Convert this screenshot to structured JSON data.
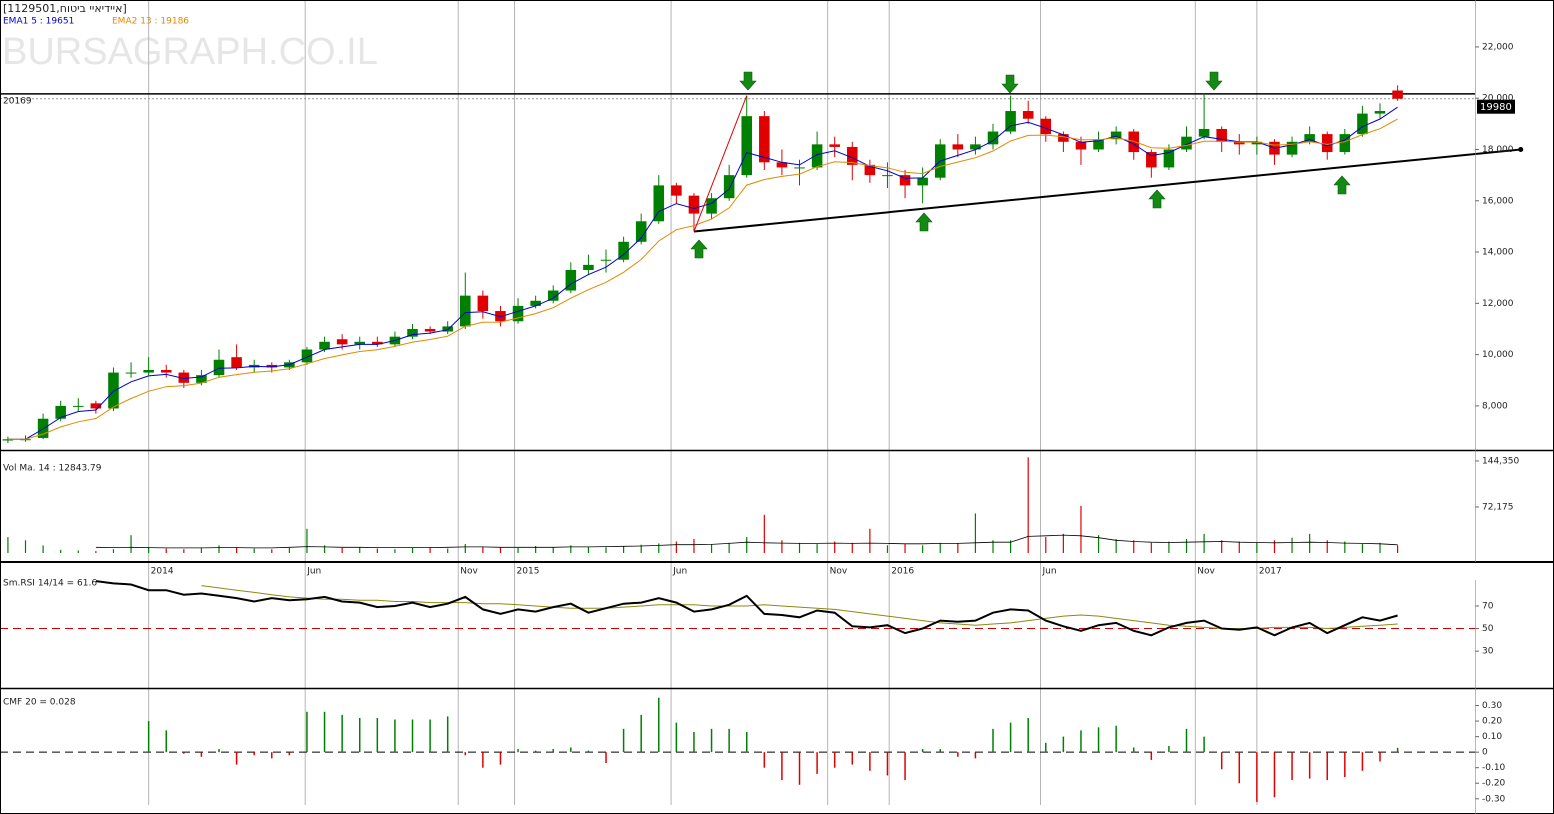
{
  "chart_data": [
    {
      "type": "candlestick",
      "title": "[1129501,איידיאיי ביטוח]",
      "watermark": "BURSAGRAPH.CO.IL",
      "up_color": "#008000",
      "down_color": "#e00000",
      "xlim": [
        -0.45,
        83.4
      ],
      "ylim": [
        6280,
        23830
      ],
      "yticks": [
        {
          "value": 8000,
          "label": "8,000"
        },
        {
          "value": 10000,
          "label": "10,000"
        },
        {
          "value": 12000,
          "label": "12,000"
        },
        {
          "value": 14000,
          "label": "14,000"
        },
        {
          "value": 16000,
          "label": "16,000"
        },
        {
          "value": 18000,
          "label": "18,000"
        },
        {
          "value": 20000,
          "label": "20,000"
        },
        {
          "value": 22000,
          "label": "22,000"
        }
      ],
      "hline": 20169,
      "trendlines": [
        {
          "x": [
            39,
            86
          ],
          "y": [
            14800,
            18000
          ],
          "color": "#000000"
        },
        {
          "x": [
            39,
            42
          ],
          "y": [
            14800,
            20100
          ],
          "color": "#e00000"
        }
      ],
      "candles": [
        [
          6650,
          6800,
          6550,
          6700
        ],
        [
          6700,
          6850,
          6600,
          6700
        ],
        [
          6750,
          7700,
          6700,
          7500
        ],
        [
          7500,
          8200,
          7400,
          8000
        ],
        [
          8000,
          8300,
          7800,
          8000
        ],
        [
          8100,
          8200,
          7700,
          7900
        ],
        [
          7900,
          9500,
          7800,
          9300
        ],
        [
          9300,
          9700,
          9100,
          9300
        ],
        [
          9300,
          9900,
          9200,
          9400
        ],
        [
          9400,
          9600,
          9100,
          9300
        ],
        [
          9300,
          9400,
          8700,
          8900
        ],
        [
          8900,
          9400,
          8800,
          9200
        ],
        [
          9200,
          10200,
          9100,
          9800
        ],
        [
          9900,
          10400,
          9400,
          9500
        ],
        [
          9500,
          9800,
          9300,
          9600
        ],
        [
          9600,
          9700,
          9300,
          9500
        ],
        [
          9500,
          9800,
          9400,
          9700
        ],
        [
          9700,
          10300,
          9600,
          10200
        ],
        [
          10200,
          10700,
          10100,
          10500
        ],
        [
          10600,
          10800,
          10200,
          10400
        ],
        [
          10400,
          10700,
          10200,
          10500
        ],
        [
          10500,
          10700,
          10300,
          10400
        ],
        [
          10400,
          10900,
          10300,
          10700
        ],
        [
          10700,
          11200,
          10600,
          11000
        ],
        [
          11000,
          11100,
          10800,
          10900
        ],
        [
          10900,
          11300,
          10800,
          11100
        ],
        [
          11100,
          13200,
          11000,
          12300
        ],
        [
          12300,
          12500,
          11400,
          11700
        ],
        [
          11700,
          11900,
          11100,
          11300
        ],
        [
          11300,
          12200,
          11200,
          11900
        ],
        [
          11900,
          12300,
          11800,
          12100
        ],
        [
          12100,
          12700,
          12000,
          12500
        ],
        [
          12500,
          13600,
          12400,
          13300
        ],
        [
          13300,
          13900,
          13100,
          13500
        ],
        [
          13700,
          14100,
          13200,
          13700
        ],
        [
          13700,
          14600,
          13600,
          14400
        ],
        [
          14400,
          15500,
          14300,
          15200
        ],
        [
          15200,
          17000,
          15100,
          16600
        ],
        [
          16600,
          16700,
          15900,
          16200
        ],
        [
          16200,
          16300,
          14800,
          15500
        ],
        [
          15500,
          16300,
          15300,
          16100
        ],
        [
          16100,
          17400,
          16000,
          17000
        ],
        [
          17000,
          20100,
          16900,
          19300
        ],
        [
          19300,
          19500,
          17200,
          17500
        ],
        [
          17500,
          18000,
          17000,
          17300
        ],
        [
          17300,
          17600,
          16600,
          17300
        ],
        [
          17300,
          18700,
          17200,
          18200
        ],
        [
          18200,
          18500,
          17700,
          18100
        ],
        [
          18100,
          18300,
          16800,
          17400
        ],
        [
          17400,
          17600,
          16700,
          17000
        ],
        [
          17000,
          17500,
          16500,
          17000
        ],
        [
          17000,
          17200,
          16100,
          16600
        ],
        [
          16600,
          17300,
          15900,
          16900
        ],
        [
          16900,
          18400,
          16800,
          18200
        ],
        [
          18200,
          18600,
          17700,
          18000
        ],
        [
          18000,
          18500,
          17800,
          18200
        ],
        [
          18200,
          19000,
          18000,
          18700
        ],
        [
          18700,
          20100,
          18600,
          19500
        ],
        [
          19500,
          19900,
          19000,
          19200
        ],
        [
          19200,
          19300,
          18300,
          18600
        ],
        [
          18600,
          18700,
          17900,
          18300
        ],
        [
          18300,
          18500,
          17400,
          18000
        ],
        [
          18000,
          18700,
          17900,
          18400
        ],
        [
          18400,
          18900,
          18200,
          18700
        ],
        [
          18700,
          18800,
          17600,
          17900
        ],
        [
          17900,
          18000,
          16900,
          17300
        ],
        [
          17300,
          18200,
          17200,
          18000
        ],
        [
          18000,
          18900,
          17900,
          18500
        ],
        [
          18500,
          20200,
          18400,
          18800
        ],
        [
          18800,
          18900,
          17900,
          18300
        ],
        [
          18300,
          18600,
          17800,
          18200
        ],
        [
          18200,
          18500,
          17800,
          18300
        ],
        [
          18300,
          18400,
          17400,
          17800
        ],
        [
          17800,
          18500,
          17700,
          18300
        ],
        [
          18300,
          18900,
          18200,
          18600
        ],
        [
          18600,
          18700,
          17600,
          17900
        ],
        [
          17900,
          18800,
          17800,
          18600
        ],
        [
          18600,
          19700,
          18500,
          19400
        ],
        [
          19400,
          19800,
          19200,
          19500
        ],
        [
          20300,
          20500,
          19900,
          19980
        ]
      ],
      "series": [
        {
          "name": "EMA1 5 : 19651",
          "color": "#0000cc",
          "values": [
            6700,
            6700,
            7100,
            7550,
            7780,
            7840,
            8570,
            8940,
            9170,
            9230,
            9070,
            9130,
            9470,
            9480,
            9540,
            9520,
            9610,
            9900,
            10200,
            10300,
            10400,
            10400,
            10550,
            10780,
            10840,
            10970,
            11640,
            11670,
            11480,
            11690,
            11900,
            12200,
            12750,
            13120,
            13410,
            13900,
            14550,
            15580,
            15890,
            15700,
            15900,
            16450,
            17880,
            17690,
            17500,
            17400,
            17800,
            17950,
            17680,
            17340,
            17170,
            16880,
            16890,
            17550,
            17770,
            17990,
            18340,
            18920,
            19060,
            18830,
            18570,
            18280,
            18340,
            18520,
            18210,
            17760,
            17880,
            18190,
            18500,
            18400,
            18300,
            18300,
            18050,
            18180,
            18390,
            18140,
            18370,
            18890,
            19190,
            19651
          ]
        },
        {
          "name": "EMA2 13 : 19186",
          "color": "#e08a00",
          "values": [
            6700,
            6700,
            6900,
            7180,
            7380,
            7510,
            7960,
            8290,
            8570,
            8750,
            8790,
            8890,
            9120,
            9220,
            9310,
            9360,
            9450,
            9640,
            9850,
            9990,
            10120,
            10190,
            10320,
            10490,
            10590,
            10720,
            11110,
            11260,
            11270,
            11430,
            11600,
            11830,
            12200,
            12530,
            12820,
            13210,
            13710,
            14430,
            14870,
            15030,
            15290,
            15720,
            16610,
            16830,
            16950,
            17040,
            17330,
            17520,
            17490,
            17370,
            17280,
            17110,
            17060,
            17340,
            17510,
            17680,
            17940,
            18330,
            18550,
            18560,
            18500,
            18380,
            18380,
            18460,
            18320,
            18070,
            18050,
            18160,
            18320,
            18320,
            18290,
            18290,
            18170,
            18200,
            18300,
            18200,
            18300,
            18580,
            18810,
            19186
          ]
        }
      ]
    },
    {
      "type": "volume",
      "title": "Vol Ma. 14 : 12843.79",
      "ylim": [
        0,
        160000
      ],
      "yticks": [
        {
          "value": 144350,
          "label": "144,350"
        },
        {
          "value": 72175,
          "label": "72,175"
        }
      ],
      "xticks": [
        {
          "value": 8.0,
          "label": "2014"
        },
        {
          "value": 16.9,
          "label": "Jun"
        },
        {
          "value": 25.6,
          "label": "Nov"
        },
        {
          "value": 28.8,
          "label": "2015"
        },
        {
          "value": 37.7,
          "label": "Jun"
        },
        {
          "value": 46.6,
          "label": "Nov"
        },
        {
          "value": 50.1,
          "label": "2016"
        },
        {
          "value": 58.7,
          "label": "Jun"
        },
        {
          "value": 67.5,
          "label": "Nov"
        },
        {
          "value": 71.0,
          "label": "2017"
        }
      ],
      "values": [
        25000,
        20000,
        12000,
        5000,
        4000,
        3000,
        6000,
        28000,
        9000,
        7000,
        6000,
        8000,
        12000,
        9000,
        7000,
        6000,
        8000,
        38000,
        12000,
        8000,
        9000,
        7000,
        6000,
        8000,
        9000,
        7000,
        14000,
        10000,
        9000,
        8000,
        11000,
        9000,
        12000,
        10000,
        9000,
        11000,
        13000,
        15000,
        18000,
        22000,
        14000,
        16000,
        25000,
        60000,
        20000,
        16000,
        14000,
        18000,
        16000,
        38000,
        12000,
        14000,
        12000,
        16000,
        15000,
        62000,
        20000,
        20000,
        150000,
        25000,
        30000,
        74000,
        28000,
        22000,
        20000,
        16000,
        18000,
        22000,
        30000,
        20000,
        18000,
        16000,
        20000,
        24000,
        30000,
        20000,
        18000,
        14000,
        16000,
        12000
      ],
      "ma_color": "#000000",
      "ma": [
        null,
        null,
        null,
        null,
        null,
        9000,
        8500,
        9000,
        8500,
        8000,
        8000,
        8000,
        8500,
        8500,
        8000,
        8000,
        9000,
        10000,
        9500,
        9000,
        9000,
        8500,
        8500,
        8500,
        8500,
        9000,
        9500,
        9500,
        9000,
        9000,
        9000,
        9000,
        9500,
        9500,
        10000,
        10500,
        11000,
        12000,
        13000,
        13000,
        13500,
        15000,
        17000,
        16000,
        15500,
        15000,
        15000,
        15500,
        15000,
        15500,
        15000,
        14500,
        14500,
        15000,
        15000,
        16000,
        17000,
        17000,
        26000,
        27000,
        28000,
        27000,
        24000,
        20000,
        18000,
        17000,
        16500,
        17000,
        17500,
        18000,
        17000,
        16500,
        16000,
        16500,
        17000,
        16500,
        15500,
        15000,
        14500,
        12843.79
      ]
    },
    {
      "type": "line",
      "title": "Sm.RSI 14/14 = 61.6",
      "ylim": [
        0,
        93
      ],
      "yticks": [
        30,
        50,
        70
      ],
      "reference": 50,
      "reference_color": "#d00000",
      "color": "#000000",
      "ma_color": "#8a8a10",
      "values": [
        null,
        null,
        null,
        null,
        null,
        92,
        90,
        89,
        84,
        84,
        80,
        81,
        79,
        77,
        74,
        77,
        75,
        76,
        78,
        74,
        73,
        69,
        70,
        73,
        69,
        72,
        78,
        67,
        63,
        67,
        65,
        69,
        72,
        64,
        68,
        72,
        73,
        77,
        73,
        65,
        67,
        71,
        79,
        63,
        62,
        60,
        66,
        64,
        52,
        51,
        53,
        46,
        50,
        57,
        56,
        57,
        64,
        67,
        66,
        57,
        52,
        48,
        53,
        55,
        48,
        44,
        51,
        55,
        57,
        50,
        49,
        51,
        44,
        51,
        55,
        46,
        53,
        60,
        57,
        61.6
      ],
      "ma": [
        null,
        null,
        null,
        null,
        null,
        null,
        null,
        null,
        null,
        null,
        null,
        88,
        86,
        84,
        82,
        80,
        78,
        77,
        76,
        76,
        75,
        75,
        74,
        74,
        73,
        73,
        73,
        72,
        72,
        71,
        70,
        69,
        68,
        68,
        68,
        69,
        70,
        71,
        71,
        71,
        70,
        70,
        70,
        71,
        70,
        69,
        68,
        67,
        65,
        63,
        61,
        59,
        57,
        55,
        54,
        53,
        54,
        55,
        57,
        59,
        61,
        62,
        61,
        59,
        57,
        55,
        53,
        52,
        51,
        50,
        50,
        50,
        51,
        51,
        51,
        50,
        51,
        52,
        53,
        54
      ]
    },
    {
      "type": "cmf",
      "title": "CMF 20 = 0.028",
      "ylim": [
        -0.34,
        0.4
      ],
      "reference": 0,
      "reference_color": "#000000",
      "up_color": "#008000",
      "down_color": "#e00000",
      "yticks": [
        {
          "value": 0.3,
          "label": "0.30"
        },
        {
          "value": 0.2,
          "label": "0.20"
        },
        {
          "value": 0.1,
          "label": "0.10"
        },
        0,
        {
          "value": -0.1,
          "label": "-0.10"
        },
        {
          "value": -0.2,
          "label": "-0.20"
        },
        {
          "value": -0.3,
          "label": "-0.30"
        }
      ],
      "values": [
        null,
        null,
        null,
        null,
        null,
        null,
        null,
        null,
        0.2,
        0.14,
        -0.01,
        -0.03,
        0.02,
        -0.08,
        -0.02,
        -0.04,
        -0.02,
        0.26,
        0.26,
        0.24,
        0.22,
        0.22,
        0.21,
        0.21,
        0.21,
        0.23,
        -0.02,
        -0.1,
        -0.08,
        0.02,
        0.01,
        0.02,
        0.03,
        0.01,
        -0.07,
        0.15,
        0.24,
        0.35,
        0.19,
        0.13,
        0.15,
        0.15,
        0.13,
        -0.1,
        -0.18,
        -0.21,
        -0.14,
        -0.1,
        -0.08,
        -0.12,
        -0.15,
        -0.18,
        0.02,
        0.02,
        -0.03,
        -0.04,
        0.15,
        0.19,
        0.22,
        0.06,
        0.1,
        0.14,
        0.16,
        0.17,
        0.03,
        -0.05,
        0.04,
        0.15,
        0.1,
        -0.11,
        -0.2,
        -0.32,
        -0.29,
        -0.18,
        -0.17,
        -0.18,
        -0.16,
        -0.12,
        -0.06,
        0.028
      ]
    }
  ]
}
